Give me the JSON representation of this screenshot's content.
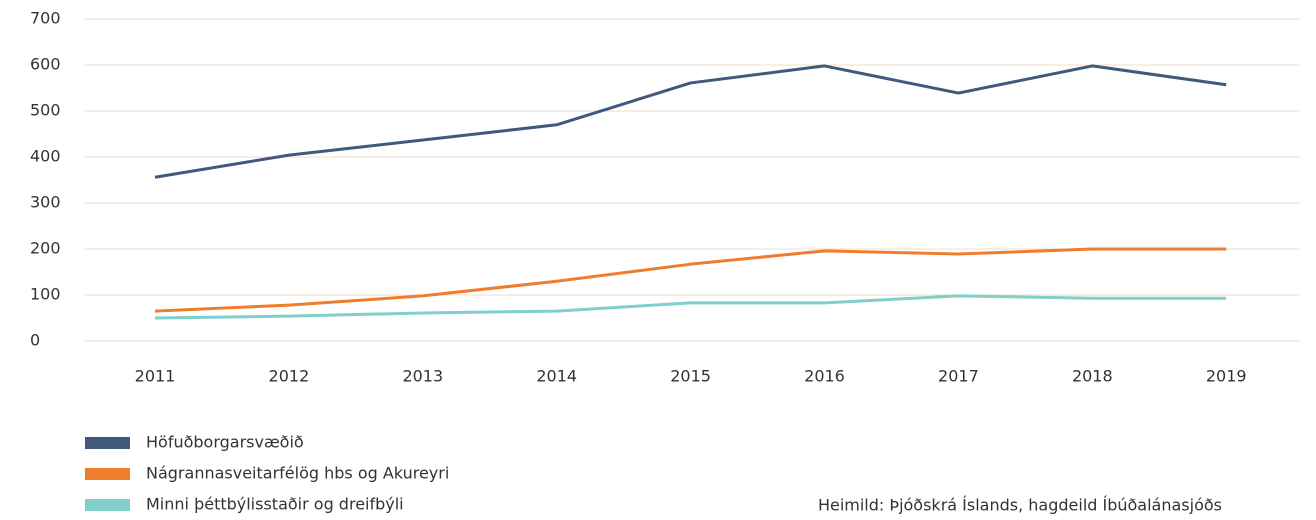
{
  "chart_data": {
    "type": "line",
    "categories": [
      "2011",
      "2012",
      "2013",
      "2014",
      "2015",
      "2016",
      "2017",
      "2018",
      "2019"
    ],
    "series": [
      {
        "name": "Höfuðborgarsvæðið",
        "color": "#3f5a7c",
        "values": [
          356,
          404,
          437,
          470,
          561,
          598,
          539,
          598,
          557
        ]
      },
      {
        "name": "Nágrannasveitarfélög hbs og Akureyri",
        "color": "#ef7d2d",
        "values": [
          65,
          78,
          98,
          130,
          167,
          196,
          189,
          200,
          200
        ]
      },
      {
        "name": "Minni þéttbýlisstaðir og dreifbýli",
        "color": "#7fcfcb",
        "values": [
          50,
          54,
          61,
          65,
          83,
          83,
          98,
          93,
          93
        ]
      }
    ],
    "ylim": [
      0,
      700
    ],
    "yticks": [
      0,
      100,
      200,
      300,
      400,
      500,
      600,
      700
    ],
    "grid": true,
    "source": "Heimild: Þjóðskrá Íslands, hagdeild Íbúðalánasjóðs"
  }
}
